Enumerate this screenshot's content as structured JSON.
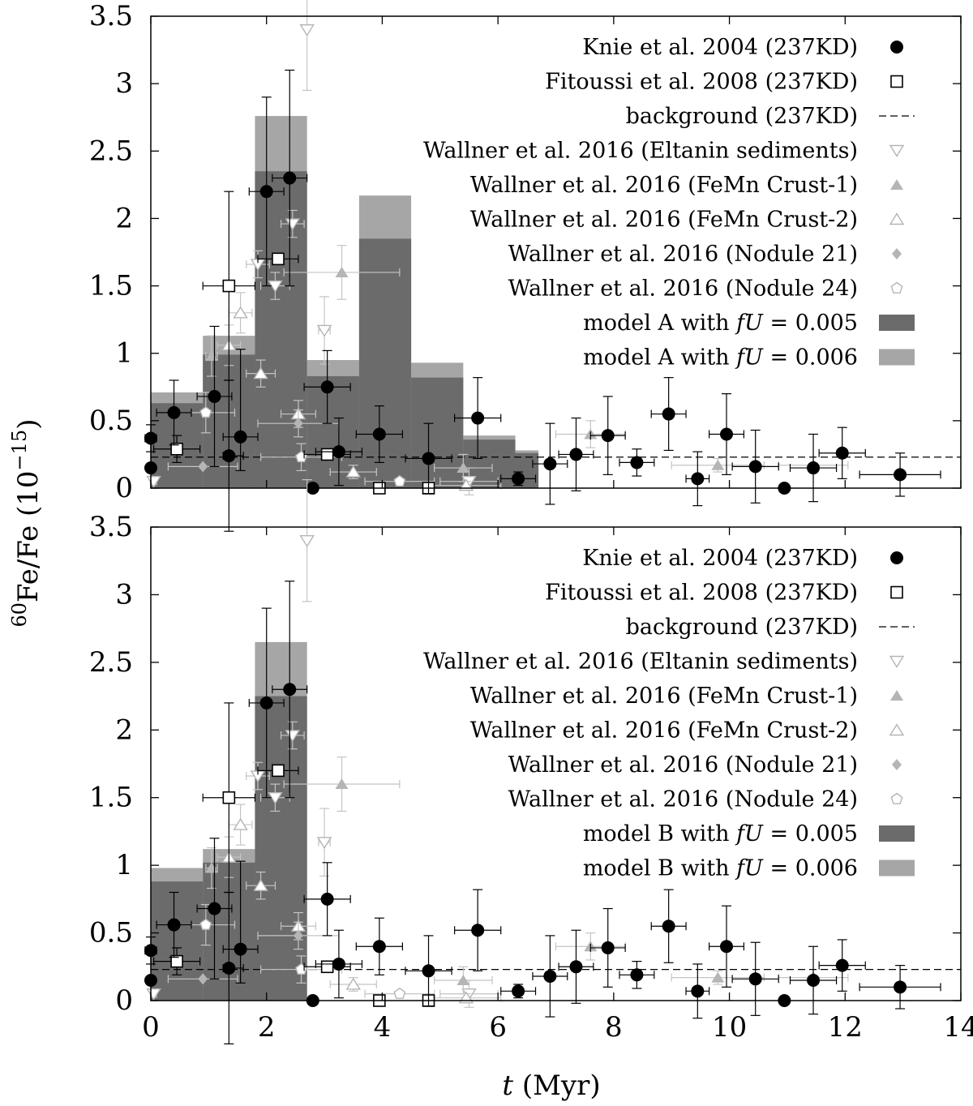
{
  "chart_data": [
    {
      "type": "bar",
      "panel": "top",
      "ylabel_html": "60Fe/Fe (10−15)",
      "ylim": [
        0,
        3.5
      ],
      "xlim": [
        0,
        14
      ],
      "yticks": [
        "0",
        "0.5",
        "1",
        "1.5",
        "2",
        "2.5",
        "3",
        "3.5"
      ],
      "xticks": [],
      "legend": [
        {
          "text": "Knie et al. 2004 (237KD)",
          "kind": "filled-circle"
        },
        {
          "text": "Fitoussi et al. 2008 (237KD)",
          "kind": "open-square"
        },
        {
          "text": "background (237KD)",
          "kind": "dashed-line"
        },
        {
          "text": "Wallner et al. 2016 (Eltanin sediments)",
          "kind": "open-down-triangle"
        },
        {
          "text": "Wallner et al. 2016 (FeMn Crust-1)",
          "kind": "filled-triangle"
        },
        {
          "text": "Wallner et al. 2016 (FeMn Crust-2)",
          "kind": "open-triangle"
        },
        {
          "text": "Wallner et al. 2016 (Nodule 21)",
          "kind": "filled-diamond"
        },
        {
          "text": "Wallner et al. 2016 (Nodule 24)",
          "kind": "open-pentagon"
        },
        {
          "text": "model A with fU = 0.005",
          "kind": "dark-box"
        },
        {
          "text": "model A with fU = 0.006",
          "kind": "light-box"
        }
      ],
      "hist_light": [
        [
          0,
          0.9,
          0.71
        ],
        [
          0.9,
          1.8,
          1.13
        ],
        [
          1.8,
          2.7,
          2.76
        ],
        [
          2.7,
          3.6,
          0.95
        ],
        [
          3.6,
          4.5,
          2.17
        ],
        [
          4.5,
          5.4,
          0.93
        ],
        [
          5.4,
          6.3,
          0.39
        ],
        [
          6.3,
          6.7,
          0.28
        ]
      ],
      "hist_dark": [
        [
          0,
          0.9,
          0.63
        ],
        [
          0.9,
          1.8,
          0.99
        ],
        [
          1.8,
          2.7,
          2.35
        ],
        [
          2.7,
          3.6,
          0.83
        ],
        [
          3.6,
          4.5,
          1.85
        ],
        [
          4.5,
          5.4,
          0.82
        ],
        [
          5.4,
          6.3,
          0.36
        ],
        [
          6.3,
          6.7,
          0.26
        ]
      ]
    },
    {
      "type": "bar",
      "panel": "bottom",
      "ylim": [
        0,
        3.5
      ],
      "xlim": [
        0,
        14
      ],
      "yticks": [
        "0",
        "0.5",
        "1",
        "1.5",
        "2",
        "2.5",
        "3",
        "3.5"
      ],
      "xticks": [
        "0",
        "2",
        "4",
        "6",
        "8",
        "10",
        "12",
        "14"
      ],
      "xlabel_html": "t (Myr)",
      "legend": [
        {
          "text": "Knie et al. 2004 (237KD)",
          "kind": "filled-circle"
        },
        {
          "text": "Fitoussi et al. 2008 (237KD)",
          "kind": "open-square"
        },
        {
          "text": "background (237KD)",
          "kind": "dashed-line"
        },
        {
          "text": "Wallner et al. 2016 (Eltanin sediments)",
          "kind": "open-down-triangle"
        },
        {
          "text": "Wallner et al. 2016 (FeMn Crust-1)",
          "kind": "filled-triangle"
        },
        {
          "text": "Wallner et al. 2016 (FeMn Crust-2)",
          "kind": "open-triangle"
        },
        {
          "text": "Wallner et al. 2016 (Nodule 21)",
          "kind": "filled-diamond"
        },
        {
          "text": "Wallner et al. 2016 (Nodule 24)",
          "kind": "open-pentagon"
        },
        {
          "text": "model B with fU = 0.005",
          "kind": "dark-box"
        },
        {
          "text": "model B with fU = 0.006",
          "kind": "light-box"
        }
      ],
      "hist_light": [
        [
          0,
          0.9,
          0.98
        ],
        [
          0.9,
          1.8,
          1.12
        ],
        [
          1.8,
          2.7,
          2.65
        ]
      ],
      "hist_dark": [
        [
          0,
          0.9,
          0.88
        ],
        [
          0.9,
          1.8,
          1.02
        ],
        [
          1.8,
          2.7,
          2.25
        ]
      ]
    }
  ],
  "axes_labels": {
    "ylabel_prefix": "60",
    "ylabel_main": "Fe/Fe (10",
    "ylabel_exp": "−15",
    "ylabel_close": ")",
    "xlabel_var": "t",
    "xlabel_unit": " (Myr)"
  },
  "series_data": {
    "background_level": 0.23,
    "knie": [
      [
        0,
        0.15,
        0,
        0,
        0,
        0
      ],
      [
        0,
        0.37,
        0.1,
        0.1,
        0.1,
        0.1
      ],
      [
        0.4,
        0.56,
        0.3,
        0.3,
        0.24,
        0.24
      ],
      [
        1.1,
        0.68,
        0.3,
        0.3,
        0.52,
        0.52
      ],
      [
        1.35,
        0.24,
        0.1,
        0.25,
        0.56,
        0.56
      ],
      [
        1.55,
        0.38,
        0.3,
        0.3,
        0.25,
        0.65
      ],
      [
        2.0,
        2.2,
        0.3,
        0.3,
        0.7,
        0.7
      ],
      [
        2.4,
        2.3,
        0.3,
        0.3,
        0.8,
        0.8
      ],
      [
        2.8,
        0,
        0,
        0,
        0,
        0
      ],
      [
        3.05,
        0.75,
        0.4,
        0.4,
        0.27,
        0.27
      ],
      [
        3.25,
        0.27,
        0.4,
        0.4,
        0.25,
        0.25
      ],
      [
        3.95,
        0.4,
        0.4,
        0.4,
        0.21,
        0.21
      ],
      [
        4.8,
        0.22,
        0.4,
        0.4,
        0.26,
        0.26
      ],
      [
        5.65,
        0.52,
        0.4,
        0.4,
        0.3,
        0.3
      ],
      [
        6.35,
        0.07,
        0.3,
        0.3,
        0.05,
        0.05
      ],
      [
        6.9,
        0.18,
        0.3,
        0.3,
        0.3,
        0.3
      ],
      [
        7.35,
        0.25,
        0.3,
        0.3,
        0.27,
        0.27
      ],
      [
        7.9,
        0.39,
        0.3,
        0.3,
        0.29,
        0.29
      ],
      [
        8.4,
        0.19,
        0.3,
        0.3,
        0.1,
        0.1
      ],
      [
        8.95,
        0.55,
        0.3,
        0.3,
        0.27,
        0.27
      ],
      [
        9.45,
        0.07,
        0.2,
        0.2,
        0.2,
        0.2
      ],
      [
        9.95,
        0.4,
        0.3,
        0.3,
        0.3,
        0.3
      ],
      [
        10.45,
        0.16,
        0.4,
        0.4,
        0.27,
        0.27
      ],
      [
        10.95,
        0,
        0,
        0,
        0,
        0
      ],
      [
        11.45,
        0.15,
        0.4,
        0.4,
        0.25,
        0.25
      ],
      [
        11.95,
        0.26,
        0.4,
        0.4,
        0.19,
        0.19
      ],
      [
        12.95,
        0.1,
        0.7,
        0.7,
        0.16,
        0.16
      ]
    ],
    "fitoussi": [
      [
        0.45,
        0.29,
        0.4,
        0.4,
        0.1,
        0.1
      ],
      [
        1.35,
        1.5,
        0.45,
        0.45,
        0.7,
        0.7
      ],
      [
        2.2,
        1.7,
        0.35,
        0.35,
        0,
        0
      ],
      [
        3.05,
        0.25,
        0.4,
        0.4,
        0,
        0
      ],
      [
        3.95,
        0,
        0,
        0,
        0,
        0
      ],
      [
        4.8,
        0,
        0,
        0,
        0,
        0
      ]
    ],
    "eltanin": [
      [
        0.05,
        0.05,
        0.05,
        0.05,
        0,
        0
      ],
      [
        2.7,
        3.4,
        0,
        0,
        0.45,
        0.45
      ],
      [
        1.85,
        1.66,
        0.2,
        0.2,
        0.1,
        0.1
      ],
      [
        2.15,
        1.5,
        0.25,
        0.25,
        0.1,
        0.1
      ],
      [
        2.45,
        1.96,
        0.2,
        0.2,
        0.1,
        0.1
      ],
      [
        3.0,
        1.17,
        0.1,
        0.1,
        0.25,
        0.25
      ],
      [
        5.5,
        0.05,
        0.5,
        0.5,
        0.1,
        0.1
      ]
    ],
    "crust1": [
      [
        1.05,
        0.98,
        0.1,
        0.1,
        0.15,
        0.15
      ],
      [
        3.3,
        1.6,
        1.0,
        1.0,
        0.2,
        0.2
      ],
      [
        7.6,
        0.4,
        0.6,
        0.6,
        0.1,
        0.1
      ],
      [
        9.8,
        0.17,
        0.8,
        0.8,
        0.05,
        0.05
      ],
      [
        5.4,
        0.15,
        0.5,
        0.5,
        0.1,
        0.1
      ]
    ],
    "crust2": [
      [
        1.35,
        1.06,
        0.2,
        0.2,
        0.15,
        0.15
      ],
      [
        1.55,
        1.3,
        0.2,
        0.2,
        0.15,
        0.15
      ],
      [
        1.9,
        0.85,
        0.25,
        0.25,
        0.1,
        0.1
      ],
      [
        2.55,
        0.55,
        0.3,
        0.3,
        0.1,
        0.1
      ],
      [
        3.5,
        0.12,
        0.4,
        0.4,
        0.05,
        0.05
      ],
      [
        5.45,
        0.02,
        0.6,
        0.6,
        0.03,
        0.03
      ]
    ],
    "nodule21": [
      [
        0.9,
        0.16,
        0.6,
        0.6,
        0,
        0
      ],
      [
        2.55,
        0.48,
        0.7,
        0.7,
        0.1,
        0.1
      ],
      [
        11.45,
        0.17,
        0.6,
        0.6,
        0,
        0
      ]
    ],
    "nodule24": [
      [
        0.95,
        0.56,
        0.5,
        0.5,
        0.15,
        0.15
      ],
      [
        2.6,
        0.23,
        0.7,
        0.7,
        0.1,
        0.1
      ],
      [
        4.3,
        0.05,
        0.6,
        0.6,
        0,
        0
      ]
    ]
  }
}
